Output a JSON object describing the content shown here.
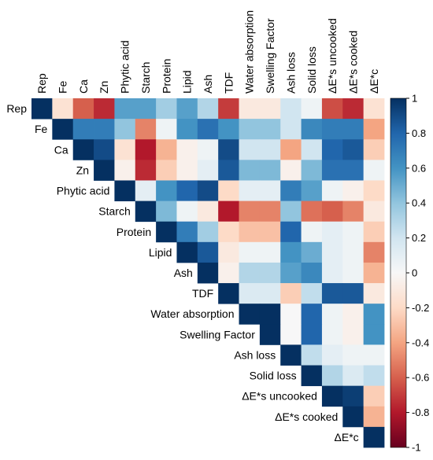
{
  "chart_data": {
    "type": "heatmap",
    "variables": [
      "Rep",
      "Fe",
      "Ca",
      "Zn",
      "Phytic acid",
      "Starch",
      "Protein",
      "Lipid",
      "Ash",
      "TDF",
      "Water absorption",
      "Swelling Factor",
      "Ash loss",
      "Solid loss",
      "ΔE*s uncooked",
      "ΔE*s cooked",
      "ΔE*c"
    ],
    "layout": "upper-triangle",
    "matrix": [
      [
        1,
        -0.15,
        -0.6,
        -0.75,
        0.55,
        0.55,
        0.35,
        0.55,
        0.3,
        -0.7,
        -0.1,
        -0.1,
        0.2,
        0.05,
        -0.65,
        -0.75,
        -0.15
      ],
      [
        null,
        1,
        0.7,
        0.7,
        0.4,
        -0.5,
        0.05,
        0.6,
        0.75,
        0.6,
        0.4,
        0.4,
        0.2,
        0.65,
        0.7,
        0.7,
        -0.4
      ],
      [
        null,
        null,
        1,
        0.9,
        -0.15,
        -0.8,
        -0.35,
        -0.05,
        0.05,
        0.9,
        0.2,
        0.2,
        -0.4,
        0.2,
        0.8,
        0.85,
        -0.25
      ],
      [
        null,
        null,
        null,
        1,
        -0.05,
        -0.75,
        -0.25,
        -0.05,
        0.1,
        0.85,
        0.45,
        0.45,
        -0.05,
        0.45,
        0.75,
        0.75,
        0.05
      ],
      [
        null,
        null,
        null,
        null,
        1,
        0.1,
        0.6,
        0.8,
        0.9,
        -0.2,
        0.1,
        0.1,
        0.7,
        0.55,
        0.05,
        -0.05,
        -0.2
      ],
      [
        null,
        null,
        null,
        null,
        null,
        1,
        0.45,
        0.05,
        -0.1,
        -0.8,
        -0.5,
        -0.5,
        0.4,
        -0.55,
        -0.6,
        -0.5,
        -0.1
      ],
      [
        null,
        null,
        null,
        null,
        null,
        null,
        1,
        0.7,
        0.35,
        -0.2,
        -0.3,
        -0.3,
        0.8,
        0.05,
        0.1,
        0.05,
        -0.25
      ],
      [
        null,
        null,
        null,
        null,
        null,
        null,
        null,
        1,
        0.85,
        -0.1,
        0.05,
        0.05,
        0.6,
        0.5,
        0.1,
        0.05,
        -0.5
      ],
      [
        null,
        null,
        null,
        null,
        null,
        null,
        null,
        null,
        1,
        -0.05,
        0.3,
        0.3,
        0.55,
        0.65,
        0.1,
        0.05,
        -0.35
      ],
      [
        null,
        null,
        null,
        null,
        null,
        null,
        null,
        null,
        null,
        1,
        0.15,
        0.15,
        -0.25,
        0.25,
        0.85,
        0.85,
        -0.1
      ],
      [
        null,
        null,
        null,
        null,
        null,
        null,
        null,
        null,
        null,
        null,
        1,
        1,
        0.0,
        0.8,
        0.05,
        -0.05,
        0.6
      ],
      [
        null,
        null,
        null,
        null,
        null,
        null,
        null,
        null,
        null,
        null,
        null,
        1,
        0.0,
        0.8,
        0.05,
        -0.05,
        0.6
      ],
      [
        null,
        null,
        null,
        null,
        null,
        null,
        null,
        null,
        null,
        null,
        null,
        null,
        1,
        0.25,
        0.1,
        0.05,
        0.05
      ],
      [
        null,
        null,
        null,
        null,
        null,
        null,
        null,
        null,
        null,
        null,
        null,
        null,
        null,
        1,
        0.3,
        0.15,
        0.25
      ],
      [
        null,
        null,
        null,
        null,
        null,
        null,
        null,
        null,
        null,
        null,
        null,
        null,
        null,
        null,
        1,
        0.95,
        -0.25
      ],
      [
        null,
        null,
        null,
        null,
        null,
        null,
        null,
        null,
        null,
        null,
        null,
        null,
        null,
        null,
        null,
        1,
        -0.35
      ],
      [
        null,
        null,
        null,
        null,
        null,
        null,
        null,
        null,
        null,
        null,
        null,
        null,
        null,
        null,
        null,
        null,
        1
      ]
    ],
    "colorbar": {
      "range": [
        -1,
        1
      ],
      "ticks": [
        1,
        0.8,
        0.6,
        0.4,
        0.2,
        0,
        -0.2,
        -0.4,
        -0.6,
        -0.8,
        -1
      ],
      "tick_labels": [
        "1",
        "0.8",
        "0.6",
        "0.4",
        "0.2",
        "0",
        "-0.2",
        "-0.4",
        "-0.6",
        "-0.8",
        "-1"
      ],
      "colors": [
        "#67001f",
        "#b2182b",
        "#d6604d",
        "#f4a582",
        "#fddbc7",
        "#f7f7f7",
        "#d1e5f0",
        "#92c5de",
        "#4393c3",
        "#2166ac",
        "#053061"
      ]
    }
  }
}
